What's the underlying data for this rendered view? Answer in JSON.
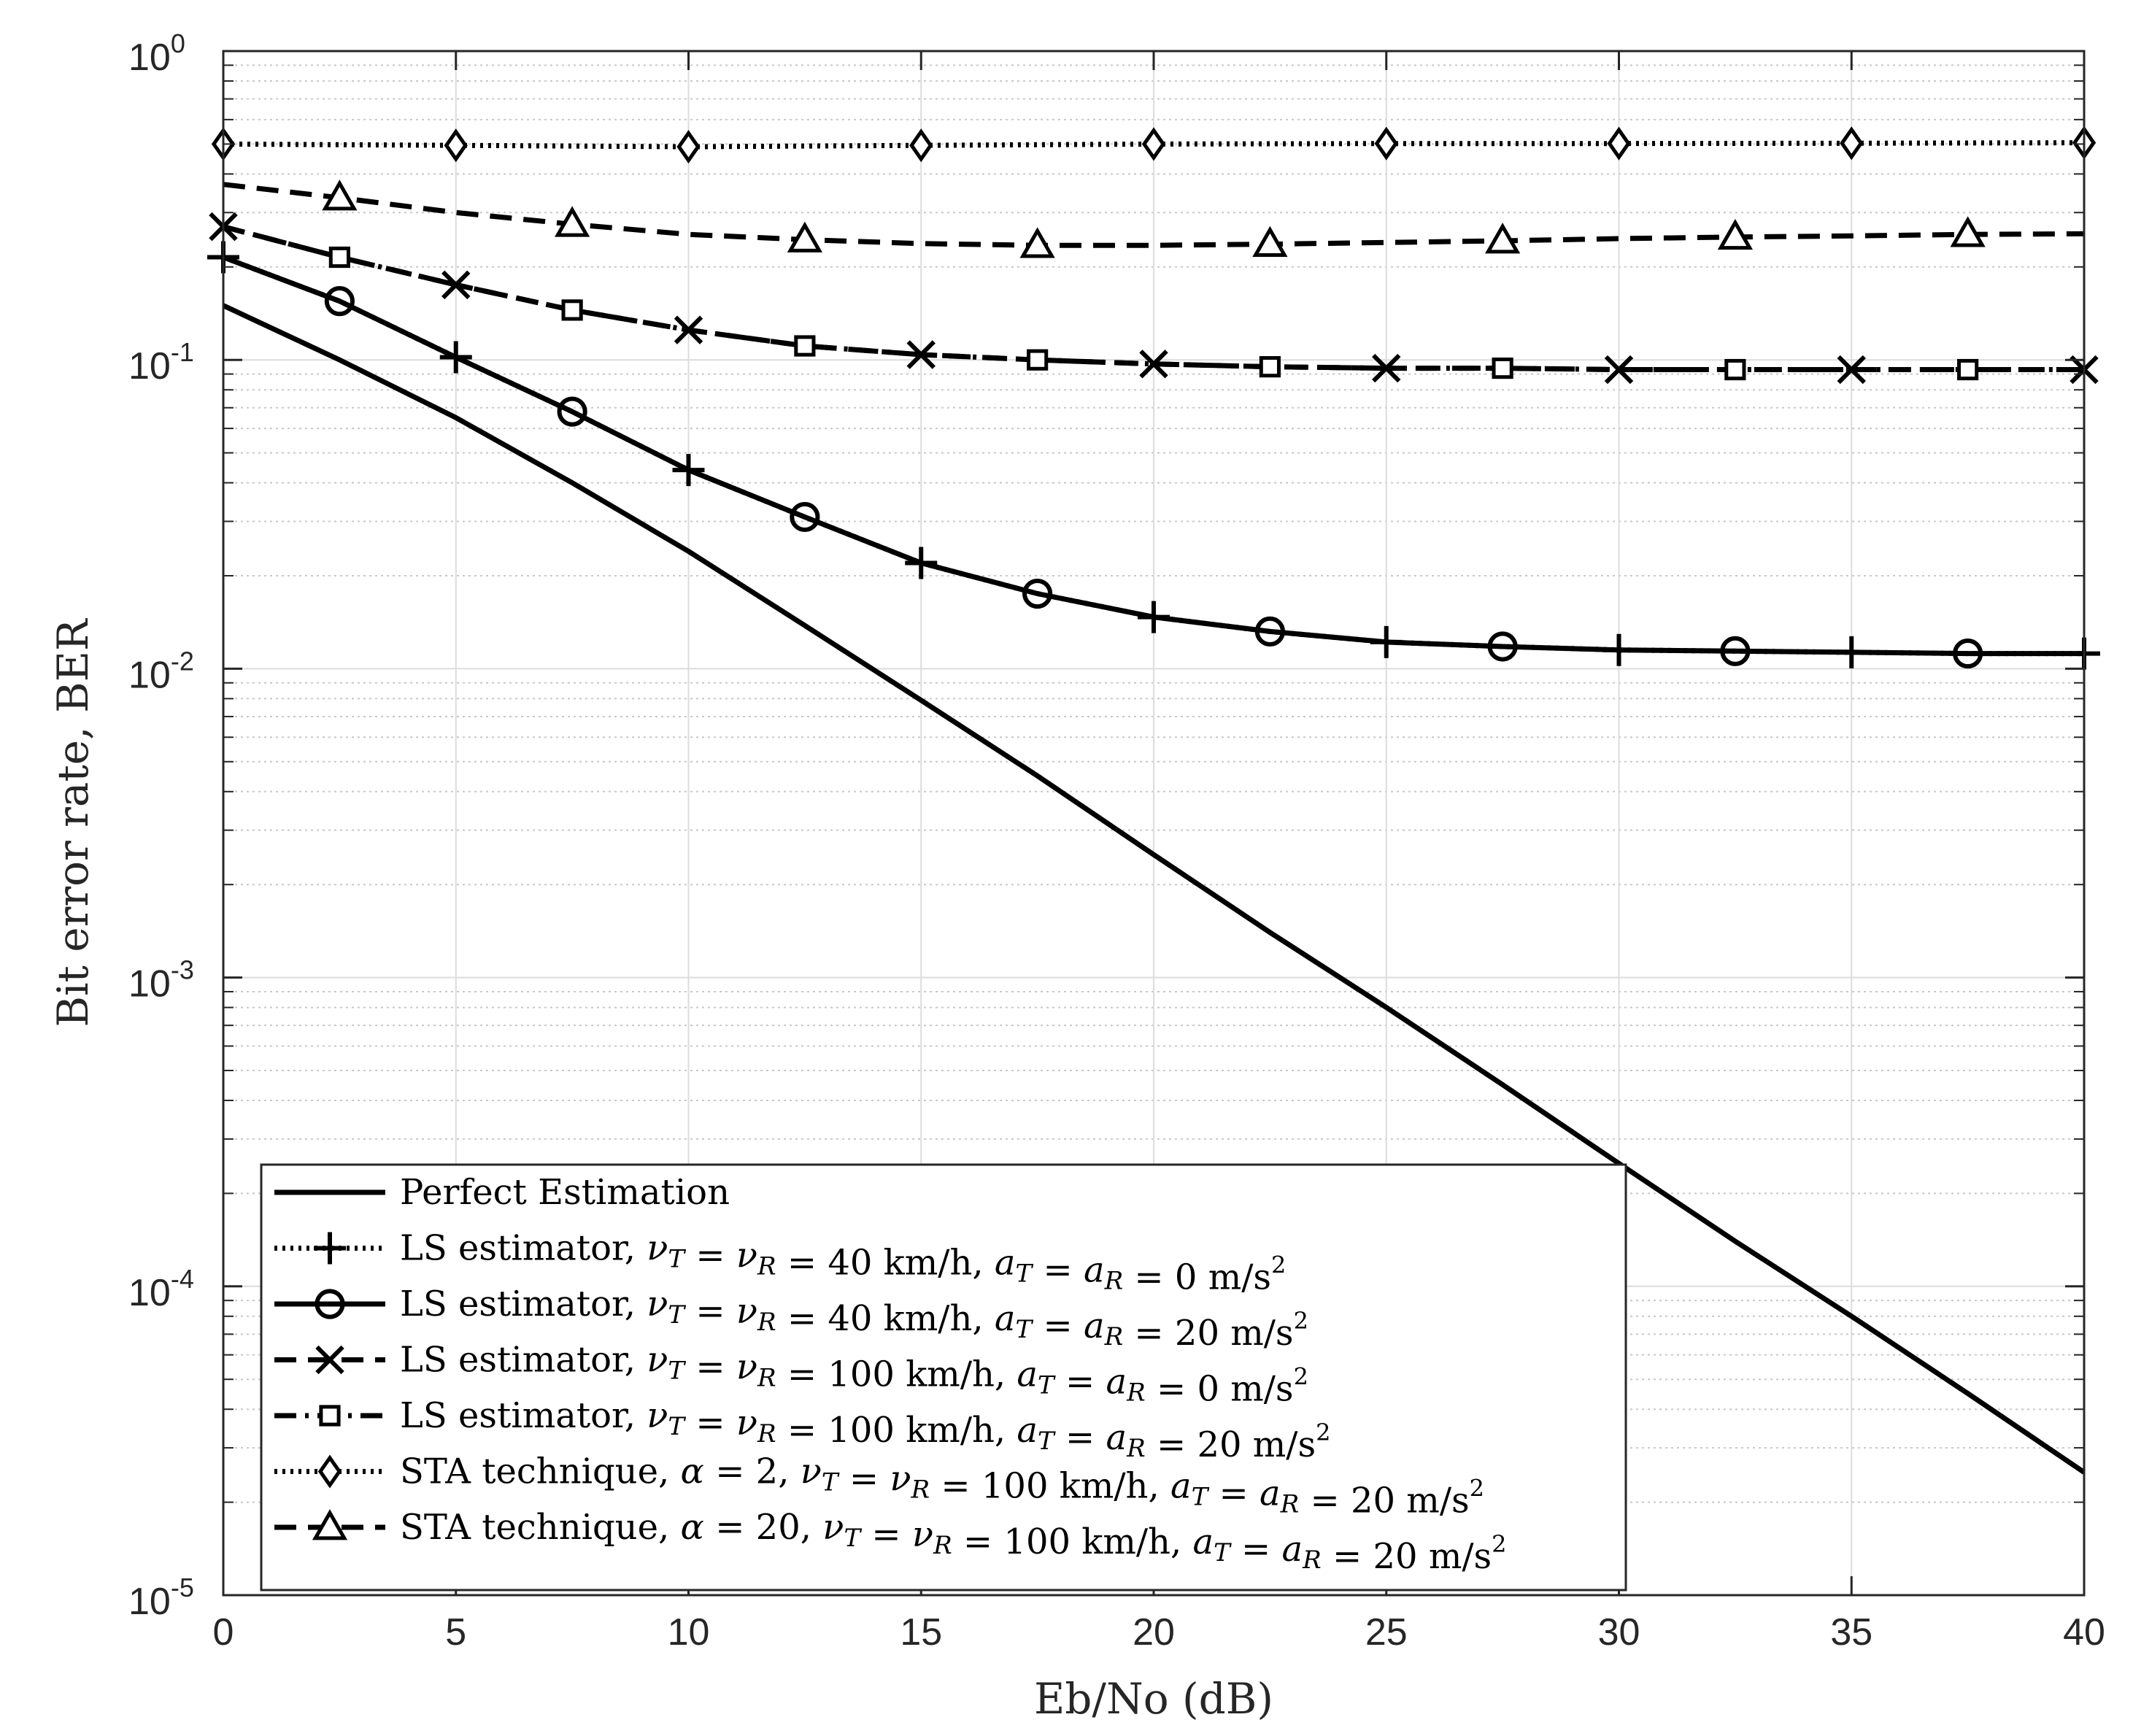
{
  "chart_data": {
    "type": "line",
    "xlabel": "Eb/No (dB)",
    "ylabel": "Bit error rate, BER",
    "yscale": "log",
    "xlim": [
      0,
      40
    ],
    "ylim": [
      1e-05,
      1
    ],
    "grid": true,
    "legend_position": "bottom-left",
    "x_ticks": [
      0,
      5,
      10,
      15,
      20,
      25,
      30,
      35,
      40
    ],
    "y_ticks": [
      {
        "value": 1,
        "mantissa": "10",
        "exp": "0"
      },
      {
        "value": 0.1,
        "mantissa": "10",
        "exp": "-1"
      },
      {
        "value": 0.01,
        "mantissa": "10",
        "exp": "-2"
      },
      {
        "value": 0.001,
        "mantissa": "10",
        "exp": "-3"
      },
      {
        "value": 0.0001,
        "mantissa": "10",
        "exp": "-4"
      },
      {
        "value": 1e-05,
        "mantissa": "10",
        "exp": "-5"
      }
    ],
    "series": [
      {
        "name": "Perfect Estimation",
        "line": "solid",
        "marker": "none",
        "x": [
          0,
          2.5,
          5,
          7.5,
          10,
          12.5,
          15,
          17.5,
          20,
          22.5,
          25,
          27.5,
          30,
          32.5,
          35,
          37.5,
          40
        ],
        "y": [
          0.15,
          0.1,
          0.065,
          0.04,
          0.024,
          0.0138,
          0.0079,
          0.0045,
          0.0025,
          0.0014,
          0.0008,
          0.00045,
          0.00025,
          0.00014,
          8e-05,
          4.5e-05,
          2.5e-05
        ]
      },
      {
        "name": "LS estimator, ν_T = ν_R = 40 km/h, a_T = a_R = 0 m/s²",
        "line": "dotted",
        "marker": "plus",
        "marker_x": [
          0,
          5,
          10,
          15,
          20,
          25,
          30,
          35,
          40
        ],
        "x": [
          0,
          2.5,
          5,
          7.5,
          10,
          12.5,
          15,
          17.5,
          20,
          22.5,
          25,
          27.5,
          30,
          32.5,
          35,
          37.5,
          40
        ],
        "y": [
          0.215,
          0.155,
          0.102,
          0.068,
          0.044,
          0.031,
          0.022,
          0.0175,
          0.0147,
          0.0132,
          0.0122,
          0.0118,
          0.0115,
          0.0114,
          0.0113,
          0.0112,
          0.0112
        ]
      },
      {
        "name": "LS estimator, ν_T = ν_R = 40 km/h, a_T = a_R = 20 m/s²",
        "line": "solid",
        "marker": "circle",
        "marker_x": [
          2.5,
          7.5,
          12.5,
          17.5,
          22.5,
          27.5,
          32.5,
          37.5
        ],
        "x": [
          0,
          2.5,
          5,
          7.5,
          10,
          12.5,
          15,
          17.5,
          20,
          22.5,
          25,
          27.5,
          30,
          32.5,
          35,
          37.5,
          40
        ],
        "y": [
          0.215,
          0.155,
          0.102,
          0.068,
          0.044,
          0.031,
          0.022,
          0.0175,
          0.0147,
          0.0132,
          0.0122,
          0.0118,
          0.0115,
          0.0114,
          0.0113,
          0.0112,
          0.0112
        ]
      },
      {
        "name": "LS estimator, ν_T = ν_R = 100 km/h, a_T = a_R = 0 m/s²",
        "line": "dashed",
        "marker": "x",
        "marker_x": [
          0,
          5,
          10,
          15,
          20,
          25,
          30,
          35,
          40
        ],
        "x": [
          0,
          2.5,
          5,
          7.5,
          10,
          12.5,
          15,
          17.5,
          20,
          22.5,
          25,
          27.5,
          30,
          32.5,
          35,
          37.5,
          40
        ],
        "y": [
          0.27,
          0.215,
          0.175,
          0.145,
          0.125,
          0.111,
          0.104,
          0.1,
          0.097,
          0.095,
          0.094,
          0.094,
          0.093,
          0.093,
          0.093,
          0.093,
          0.093
        ]
      },
      {
        "name": "LS estimator, ν_T = ν_R = 100 km/h, a_T = a_R = 20 m/s²",
        "line": "dashdot",
        "marker": "square",
        "marker_x": [
          2.5,
          7.5,
          12.5,
          17.5,
          22.5,
          27.5,
          32.5,
          37.5
        ],
        "x": [
          0,
          2.5,
          5,
          7.5,
          10,
          12.5,
          15,
          17.5,
          20,
          22.5,
          25,
          27.5,
          30,
          32.5,
          35,
          37.5,
          40
        ],
        "y": [
          0.27,
          0.215,
          0.175,
          0.145,
          0.125,
          0.111,
          0.104,
          0.1,
          0.097,
          0.095,
          0.094,
          0.094,
          0.093,
          0.093,
          0.093,
          0.093,
          0.093
        ]
      },
      {
        "name": "STA technique, α = 2, ν_T = ν_R = 100 km/h, a_T = a_R = 20 m/s²",
        "line": "dotted",
        "marker": "diamond",
        "marker_x": [
          0,
          5,
          10,
          15,
          20,
          25,
          30,
          35,
          40
        ],
        "x": [
          0,
          5,
          10,
          15,
          20,
          25,
          30,
          35,
          40
        ],
        "y": [
          0.5,
          0.495,
          0.49,
          0.495,
          0.5,
          0.502,
          0.502,
          0.503,
          0.505
        ]
      },
      {
        "name": "STA technique, α = 20, ν_T = ν_R = 100 km/h, a_T = a_R = 20 m/s²",
        "line": "dashed",
        "marker": "triangle",
        "marker_x": [
          2.5,
          7.5,
          12.5,
          17.5,
          22.5,
          27.5,
          32.5,
          37.5
        ],
        "x": [
          0,
          2.5,
          5,
          7.5,
          10,
          12.5,
          15,
          17.5,
          20,
          22.5,
          25,
          27.5,
          30,
          32.5,
          35,
          37.5,
          40
        ],
        "y": [
          0.37,
          0.335,
          0.3,
          0.275,
          0.255,
          0.245,
          0.238,
          0.235,
          0.235,
          0.237,
          0.24,
          0.243,
          0.247,
          0.25,
          0.252,
          0.255,
          0.256
        ]
      }
    ],
    "legend": [
      {
        "marker": "none",
        "line": "solid",
        "label": "Perfect Estimation"
      },
      {
        "marker": "plus",
        "line": "dotted",
        "parts": [
          {
            "t": "LS estimator, ",
            "math": false
          },
          {
            "t": "ν",
            "math": true
          },
          {
            "sub": "T"
          },
          {
            "t": " = ",
            "math": false
          },
          {
            "t": "ν",
            "math": true
          },
          {
            "sub": "R"
          },
          {
            "t": " = 40 km/h, ",
            "math": false
          },
          {
            "t": "a",
            "math": true
          },
          {
            "sub": "T"
          },
          {
            "t": " = ",
            "math": false
          },
          {
            "t": "a",
            "math": true
          },
          {
            "sub": "R"
          },
          {
            "t": " = 0 m/s",
            "math": false
          },
          {
            "sup": "2"
          }
        ]
      },
      {
        "marker": "circle",
        "line": "solid",
        "parts": [
          {
            "t": "LS estimator, ",
            "math": false
          },
          {
            "t": "ν",
            "math": true
          },
          {
            "sub": "T"
          },
          {
            "t": " = ",
            "math": false
          },
          {
            "t": "ν",
            "math": true
          },
          {
            "sub": "R"
          },
          {
            "t": " = 40 km/h, ",
            "math": false
          },
          {
            "t": "a",
            "math": true
          },
          {
            "sub": "T"
          },
          {
            "t": " = ",
            "math": false
          },
          {
            "t": "a",
            "math": true
          },
          {
            "sub": "R"
          },
          {
            "t": " = 20 m/s",
            "math": false
          },
          {
            "sup": "2"
          }
        ]
      },
      {
        "marker": "x",
        "line": "dashed",
        "parts": [
          {
            "t": "LS estimator, ",
            "math": false
          },
          {
            "t": "ν",
            "math": true
          },
          {
            "sub": "T"
          },
          {
            "t": " = ",
            "math": false
          },
          {
            "t": "ν",
            "math": true
          },
          {
            "sub": "R"
          },
          {
            "t": " = 100 km/h, ",
            "math": false
          },
          {
            "t": "a",
            "math": true
          },
          {
            "sub": "T"
          },
          {
            "t": " = ",
            "math": false
          },
          {
            "t": "a",
            "math": true
          },
          {
            "sub": "R"
          },
          {
            "t": " = 0 m/s",
            "math": false
          },
          {
            "sup": "2"
          }
        ]
      },
      {
        "marker": "square",
        "line": "dashdot",
        "parts": [
          {
            "t": "LS estimator, ",
            "math": false
          },
          {
            "t": "ν",
            "math": true
          },
          {
            "sub": "T"
          },
          {
            "t": " = ",
            "math": false
          },
          {
            "t": "ν",
            "math": true
          },
          {
            "sub": "R"
          },
          {
            "t": " = 100 km/h, ",
            "math": false
          },
          {
            "t": "a",
            "math": true
          },
          {
            "sub": "T"
          },
          {
            "t": " = ",
            "math": false
          },
          {
            "t": "a",
            "math": true
          },
          {
            "sub": "R"
          },
          {
            "t": " = 20 m/s",
            "math": false
          },
          {
            "sup": "2"
          }
        ]
      },
      {
        "marker": "diamond",
        "line": "dotted",
        "parts": [
          {
            "t": "STA technique, ",
            "math": false
          },
          {
            "t": "α",
            "math": true
          },
          {
            "t": " = 2, ",
            "math": false
          },
          {
            "t": "ν",
            "math": true
          },
          {
            "sub": "T"
          },
          {
            "t": " = ",
            "math": false
          },
          {
            "t": "ν",
            "math": true
          },
          {
            "sub": "R"
          },
          {
            "t": " = 100 km/h, ",
            "math": false
          },
          {
            "t": "a",
            "math": true
          },
          {
            "sub": "T"
          },
          {
            "t": " = ",
            "math": false
          },
          {
            "t": "a",
            "math": true
          },
          {
            "sub": "R"
          },
          {
            "t": " = 20 m/s",
            "math": false
          },
          {
            "sup": "2"
          }
        ]
      },
      {
        "marker": "triangle",
        "line": "dashed",
        "parts": [
          {
            "t": "STA technique, ",
            "math": false
          },
          {
            "t": "α",
            "math": true
          },
          {
            "t": " = 20, ",
            "math": false
          },
          {
            "t": "ν",
            "math": true
          },
          {
            "sub": "T"
          },
          {
            "t": " = ",
            "math": false
          },
          {
            "t": "ν",
            "math": true
          },
          {
            "sub": "R"
          },
          {
            "t": " = 100 km/h, ",
            "math": false
          },
          {
            "t": "a",
            "math": true
          },
          {
            "sub": "T"
          },
          {
            "t": " = ",
            "math": false
          },
          {
            "t": "a",
            "math": true
          },
          {
            "sub": "R"
          },
          {
            "t": " = 20 m/s",
            "math": false
          },
          {
            "sup": "2"
          }
        ]
      }
    ]
  }
}
